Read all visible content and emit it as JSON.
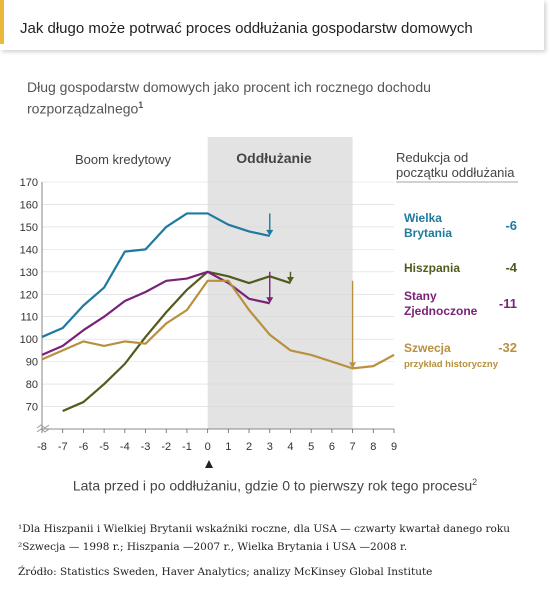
{
  "title": "Jak długo może potrwać proces oddłużania gospodarstw domowych",
  "subtitle": "Dług gospodarstw domowych jako procent ich rocznego dochodu rozporządzalnego",
  "subtitle_sup": "1",
  "phase_labels": {
    "boom": "Boom kredytowy",
    "deleveraging": "Oddłużanie"
  },
  "reduction_header": "Redukcja od początku oddłużania",
  "xlabel": "Lata przed i po oddłużaniu, gdzie 0 to pierwszy rok tego procesu",
  "xlabel_sup": "2",
  "footnotes": [
    "¹Dla Hiszpanii i Wielkiej Brytanii wskaźniki roczne, dla USA — czwarty kwartał danego roku",
    "²Szwecja — 1998 r.; Hiszpania —2007 r., Wielka Brytania i USA —2008 r."
  ],
  "source": "Źródło: Statistics Sweden, Haver Analytics; analizy McKinsey Global Institute",
  "colors": {
    "uk": "#1f7a9e",
    "spain": "#545a1e",
    "usa": "#7a2278",
    "sweden": "#b8903e",
    "shade": "#e3e3e3"
  },
  "chart_data": {
    "type": "line",
    "xlim": [
      -8,
      9
    ],
    "ylim": [
      60,
      170
    ],
    "x_ticks": [
      -8,
      -7,
      -6,
      -5,
      -4,
      -3,
      -2,
      -1,
      0,
      1,
      2,
      3,
      4,
      5,
      6,
      7,
      8,
      9
    ],
    "y_ticks": [
      70,
      80,
      90,
      100,
      110,
      120,
      130,
      140,
      150,
      160,
      170
    ],
    "shaded_region": [
      0,
      7
    ],
    "series": [
      {
        "key": "uk",
        "name": "Wielka Brytania",
        "reduction": "-6",
        "x": [
          -8,
          -7,
          -6,
          -5,
          -4,
          -3,
          -2,
          -1,
          0,
          1,
          2,
          3
        ],
        "y": [
          101,
          105,
          115,
          123,
          139,
          140,
          150,
          156,
          156,
          151,
          148,
          146
        ]
      },
      {
        "key": "spain",
        "name": "Hiszpania",
        "reduction": "-4",
        "x": [
          -7,
          -6,
          -5,
          -4,
          -3,
          -2,
          -1,
          0,
          1,
          2,
          3,
          4
        ],
        "y": [
          68,
          72,
          80,
          89,
          101,
          112,
          122,
          130,
          128,
          125,
          128,
          125
        ]
      },
      {
        "key": "usa",
        "name": "Stany Zjednoczone",
        "reduction": "-11",
        "x": [
          -8,
          -7,
          -6,
          -5,
          -4,
          -3,
          -2,
          -1,
          0,
          1,
          2,
          3
        ],
        "y": [
          93,
          97,
          104,
          110,
          117,
          121,
          126,
          127,
          130,
          125,
          118,
          116
        ]
      },
      {
        "key": "sweden",
        "name": "Szwecja",
        "note": "przykład historyczny",
        "reduction": "-32",
        "x": [
          -8,
          -7,
          -6,
          -5,
          -4,
          -3,
          -2,
          -1,
          0,
          1,
          2,
          3,
          4,
          5,
          6,
          7,
          8,
          9
        ],
        "y": [
          91,
          95,
          99,
          97,
          99,
          98,
          107,
          113,
          126,
          126,
          113,
          102,
          95,
          93,
          90,
          87,
          88,
          93
        ]
      }
    ]
  }
}
